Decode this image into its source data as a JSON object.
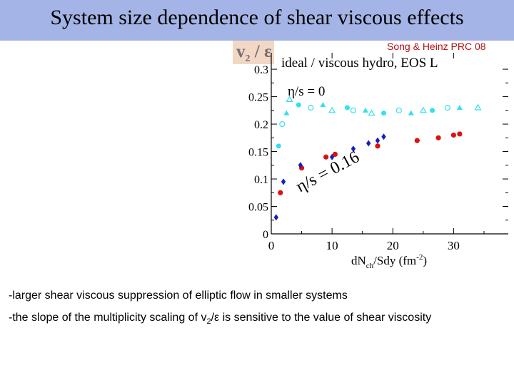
{
  "title": "System size dependence of shear viscous effects",
  "citation": "Song & Heinz PRC 08",
  "y_axis_label": {
    "main": "v",
    "sub": "2",
    "tail": " / ε"
  },
  "notes": {
    "line1": "-larger shear viscous suppression of elliptic flow in smaller systems",
    "line2_a": "-the slope of the multiplicity scaling of v",
    "line2_sub": "2",
    "line2_b": "/ε is sensitive to the value of shear viscosity"
  },
  "colors": {
    "title_bar": "#a4b4e6",
    "ideal": "#33e0f0",
    "viscous_red": "#dd1111",
    "viscous_blue": "#1122bb",
    "citation": "#b01010"
  },
  "chart_data": {
    "type": "scatter",
    "subtitle": "ideal / viscous hydro, EOS L",
    "xlabel": "dN",
    "xlabel_sub": "ch",
    "xlabel_mid": "/Sdy (fm",
    "xlabel_sup": "-2",
    "xlabel_end": ")",
    "xlim": [
      0,
      39
    ],
    "ylim": [
      0,
      0.33
    ],
    "x_ticks": [
      0,
      10,
      20,
      30
    ],
    "y_ticks": [
      0,
      0.05,
      0.1,
      0.15,
      0.2,
      0.25,
      0.3
    ],
    "annotations": {
      "ideal": "η/s = 0",
      "viscous": "η/s = 0.16"
    },
    "series": [
      {
        "name": "ideal (η/s = 0)",
        "marker": "mixed",
        "points": [
          [
            1.2,
            0.16
          ],
          [
            1.8,
            0.2
          ],
          [
            2.5,
            0.22
          ],
          [
            3.0,
            0.245
          ],
          [
            4.5,
            0.235
          ],
          [
            6.5,
            0.23
          ],
          [
            8.5,
            0.235
          ],
          [
            10.0,
            0.225
          ],
          [
            12.5,
            0.23
          ],
          [
            13.5,
            0.225
          ],
          [
            15.5,
            0.225
          ],
          [
            16.5,
            0.22
          ],
          [
            18.5,
            0.22
          ],
          [
            21.0,
            0.225
          ],
          [
            23.0,
            0.22
          ],
          [
            25.0,
            0.225
          ],
          [
            26.5,
            0.225
          ],
          [
            29.0,
            0.23
          ],
          [
            31.0,
            0.23
          ],
          [
            34.0,
            0.23
          ]
        ]
      },
      {
        "name": "viscous (η/s = 0.16), red circles",
        "marker": "circle",
        "points": [
          [
            1.5,
            0.075
          ],
          [
            5.0,
            0.12
          ],
          [
            9.0,
            0.14
          ],
          [
            10.5,
            0.145
          ],
          [
            17.5,
            0.16
          ],
          [
            24.0,
            0.17
          ],
          [
            27.5,
            0.175
          ],
          [
            30.0,
            0.18
          ],
          [
            31.0,
            0.182
          ]
        ]
      },
      {
        "name": "viscous (η/s = 0.16), blue diamonds",
        "marker": "diamond",
        "points": [
          [
            0.8,
            0.03
          ],
          [
            2.0,
            0.095
          ],
          [
            4.8,
            0.125
          ],
          [
            10.0,
            0.14
          ],
          [
            13.5,
            0.155
          ],
          [
            16.0,
            0.165
          ],
          [
            17.5,
            0.17
          ],
          [
            18.5,
            0.177
          ]
        ]
      }
    ]
  }
}
